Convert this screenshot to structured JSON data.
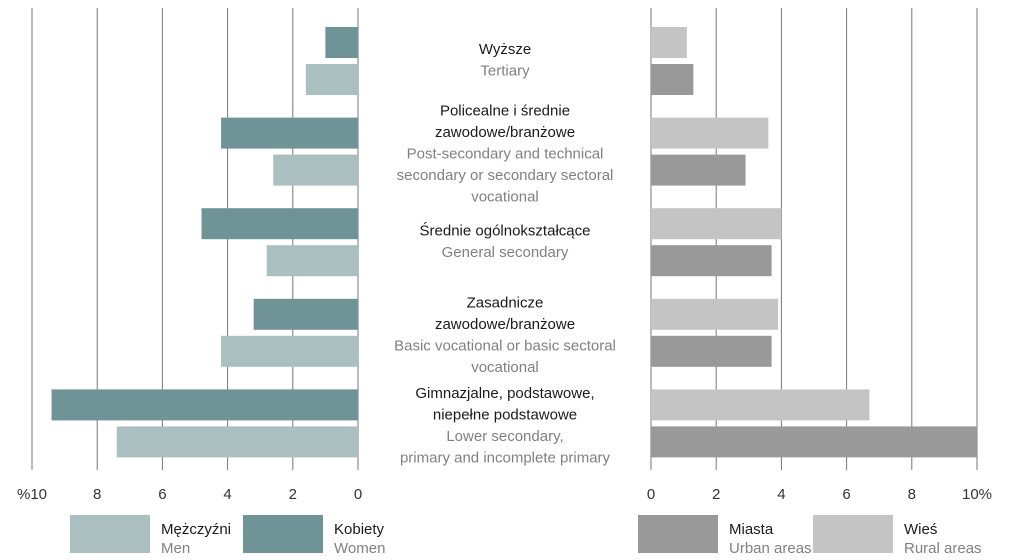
{
  "chart_data": [
    {
      "type": "bar",
      "orientation": "horizontal",
      "reversed": true,
      "categories": [
        {
          "pl": [
            "Wyższe"
          ],
          "en": [
            "Tertiary"
          ]
        },
        {
          "pl": [
            "Policealne i średnie",
            "zawodowe/branżowe"
          ],
          "en": [
            "Post-secondary and technical",
            "secondary or secondary sectoral",
            "vocational"
          ]
        },
        {
          "pl": [
            "Średnie ogólnokształcące"
          ],
          "en": [
            "General secondary"
          ]
        },
        {
          "pl": [
            "Zasadnicze",
            "zawodowe/branżowe"
          ],
          "en": [
            "Basic vocational or basic sectoral",
            "vocational"
          ]
        },
        {
          "pl": [
            "Gimnazjalne, podstawowe,",
            "niepełne podstawowe"
          ],
          "en": [
            "Lower secondary,",
            "primary and incomplete primary"
          ]
        }
      ],
      "series": [
        {
          "name": "Mężczyźni",
          "name_en": "Men",
          "color": "#a9bfc0",
          "values": [
            1.6,
            2.6,
            2.8,
            4.2,
            7.4
          ]
        },
        {
          "name": "Kobiety",
          "name_en": "Women",
          "color": "#6f9396",
          "values": [
            1.0,
            4.2,
            4.8,
            3.2,
            9.4
          ]
        }
      ],
      "xlim": [
        0,
        10
      ],
      "xticks": [
        {
          "value": 10,
          "label": "%10"
        },
        8,
        6,
        4,
        2,
        0
      ],
      "grid": true
    },
    {
      "type": "bar",
      "orientation": "horizontal",
      "reversed": false,
      "series": [
        {
          "name": "Miasta",
          "name_en": "Urban areas",
          "color": "#999999",
          "values": [
            1.3,
            2.9,
            3.7,
            3.7,
            10.0
          ]
        },
        {
          "name": "Wieś",
          "name_en": "Rural areas",
          "color": "#c4c4c4",
          "values": [
            1.1,
            3.6,
            4.0,
            3.9,
            6.7
          ]
        }
      ],
      "xlim": [
        0,
        10
      ],
      "xticks": [
        0,
        2,
        4,
        6,
        8,
        {
          "value": 10,
          "label": "10%"
        }
      ],
      "grid": true
    }
  ]
}
